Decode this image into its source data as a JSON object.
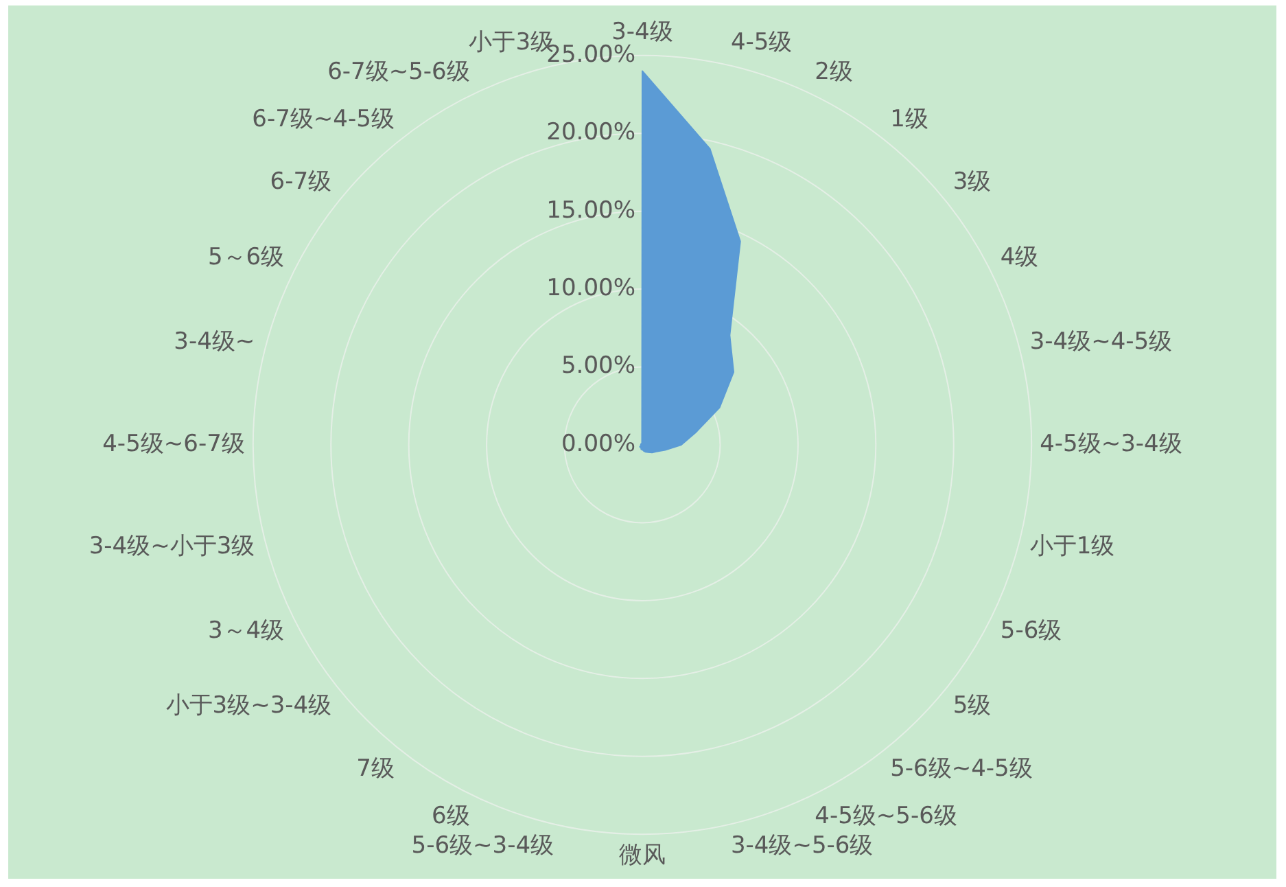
{
  "chart_data": {
    "type": "radar",
    "categories": [
      "3-4级",
      "4-5级",
      "2级",
      "1级",
      "3级",
      "4级",
      "3-4级~4-5级",
      "4-5级~3-4级",
      "小于1级",
      "5-6级",
      "5级",
      "5-6级~4-5级",
      "4-5级~5-6级",
      "3-4级~5-6级",
      "微风",
      "5-6级~3-4级",
      "6级",
      "7级",
      "小于3级~3-4级",
      "3～4级",
      "3-4级~小于3级",
      "4-5级~6-7级",
      "3-4级~",
      "5～6级",
      "6-7级",
      "6-7级~4-5级",
      "6-7级~5-6级",
      "小于3级"
    ],
    "series": [
      {
        "color": "#5b9bd5",
        "values": [
          24,
          19.5,
          14.5,
          9,
          7.5,
          5.5,
          3.5,
          2.5,
          1.5,
          1,
          0.8,
          0.6,
          0.5,
          0.4,
          0.3,
          0.3,
          0.2,
          0.2,
          0.2,
          0.1,
          0.1,
          0.1,
          0.1,
          0.1,
          0.1,
          0.1,
          0.1,
          0.1
        ]
      }
    ],
    "ylim": [
      0,
      25
    ],
    "yticks": [
      {
        "value": 0,
        "label": "0.00%"
      },
      {
        "value": 5,
        "label": "5.00%"
      },
      {
        "value": 10,
        "label": "10.00%"
      },
      {
        "value": 15,
        "label": "15.00%"
      },
      {
        "value": 20,
        "label": "20.00%"
      },
      {
        "value": 25,
        "label": "25.00%"
      }
    ],
    "grid": true,
    "legend": false
  }
}
